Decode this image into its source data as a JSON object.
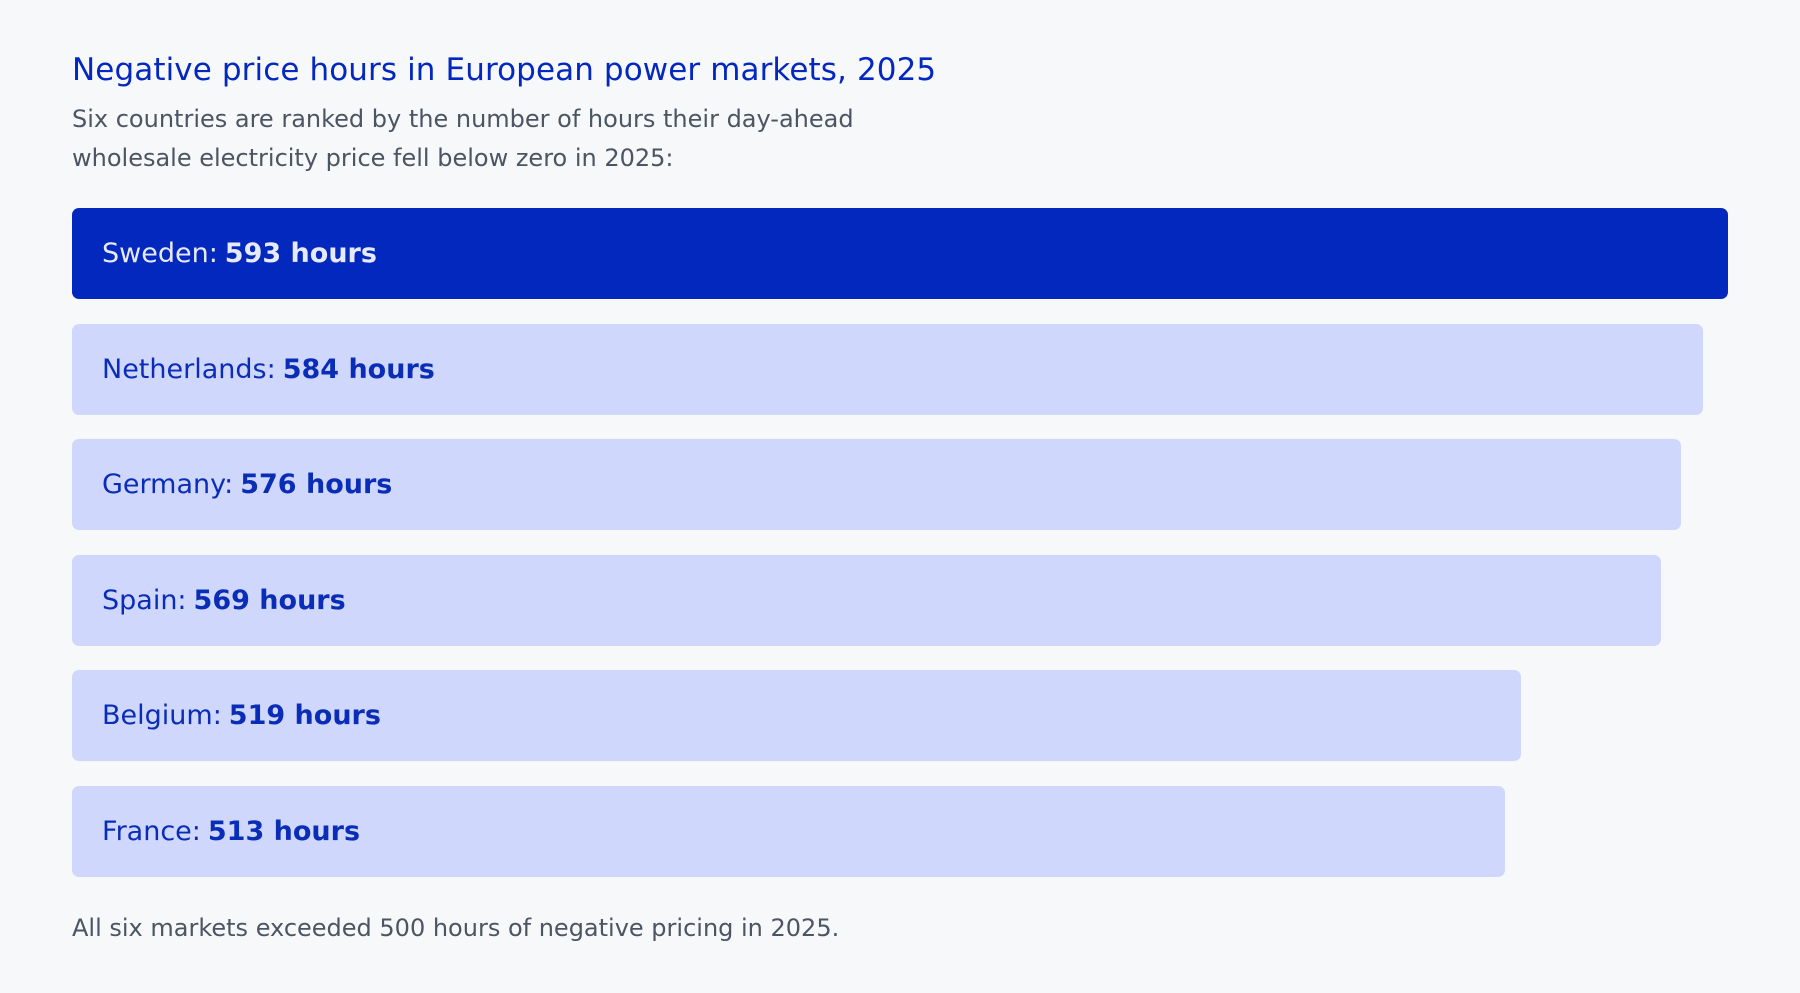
{
  "header": {
    "title": "Negative price hours in European power markets, 2025",
    "subtitle": "Six countries are ranked by the number of hours their day-ahead wholesale electricity price fell below zero in 2025:"
  },
  "chart_data": {
    "type": "bar",
    "orientation": "horizontal",
    "title": "Negative price hours in European power markets, 2025",
    "categories": [
      "Sweden",
      "Netherlands",
      "Germany",
      "Spain",
      "Belgium",
      "France"
    ],
    "values": [
      593,
      584,
      576,
      569,
      519,
      513
    ],
    "unit": "hours",
    "data_labels": [
      "593 hours",
      "584 hours",
      "576 hours",
      "569 hours",
      "519 hours",
      "513 hours"
    ],
    "highlight_category": "Sweden",
    "colors": {
      "highlight": "#0328bd",
      "default": "#d0d7fd",
      "highlight_text": "#e7eafc",
      "default_text": "#0a2db8"
    },
    "grid": false,
    "legend": "none"
  },
  "footnote": "All six markets exceeded 500 hours of negative pricing in 2025."
}
